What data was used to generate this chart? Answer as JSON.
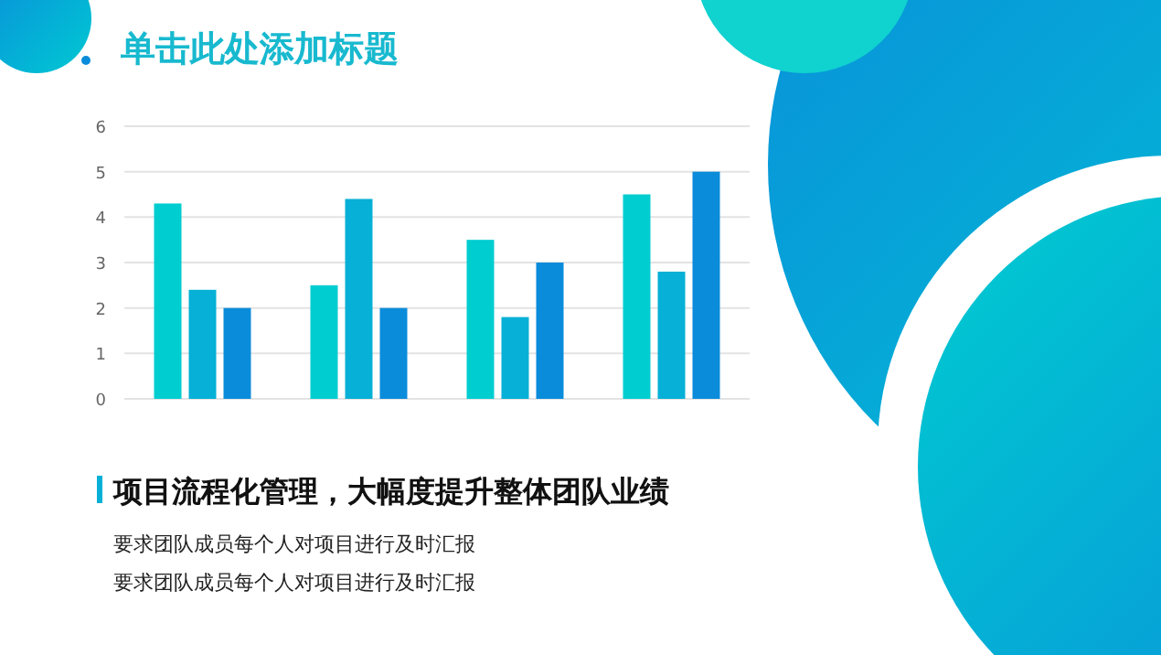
{
  "chart_data": {
    "type": "bar",
    "title": "单击此处添加标题",
    "categories": [
      null,
      null,
      null,
      null
    ],
    "series": [
      {
        "color": "#00cdd0",
        "values": [
          4.3,
          2.5,
          3.5,
          4.5
        ]
      },
      {
        "color": "#06b0d6",
        "values": [
          2.4,
          4.4,
          1.8,
          2.8
        ]
      },
      {
        "color": "#0a8cdb",
        "values": [
          2.0,
          2.0,
          3.0,
          5.0
        ]
      }
    ],
    "ylim": [
      0,
      6
    ],
    "yticks": [
      0,
      1,
      2,
      3,
      4,
      5,
      6
    ],
    "grid": "y",
    "annotations": [
      "项目流程化管理，大幅度提升整体团队业绩",
      "要求团队成员每个人对项目进行及时汇报",
      "要求团队成员每个人对项目进行及时汇报"
    ]
  }
}
